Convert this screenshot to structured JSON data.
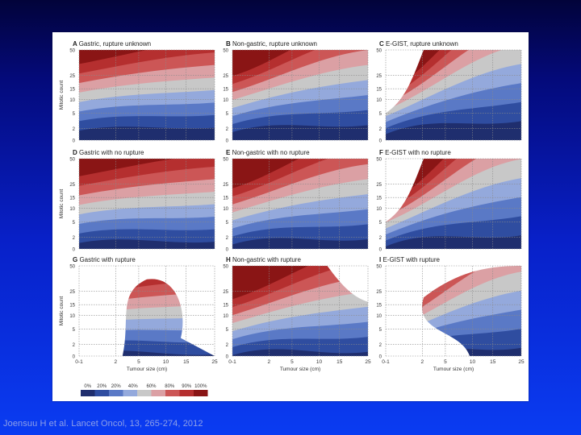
{
  "citation": "Joensuu H et al. Lancet Oncol, 13, 265-274, 2012",
  "chart_data": {
    "type": "heatmap",
    "x_ticks": [
      "0-1",
      "2",
      "5",
      "10",
      "15",
      "25"
    ],
    "y_ticks": [
      "0",
      "2",
      "5",
      "10",
      "15",
      "25",
      "50"
    ],
    "xlabel": "Tumour size (cm)",
    "ylabel": "Mitotic count",
    "legend_labels": [
      "0%",
      "20%",
      "20%",
      "40%",
      "60%",
      "80%",
      "90%",
      "100%"
    ],
    "colors": [
      "#1f2e6e",
      "#2f4da0",
      "#5a79c6",
      "#94a9dc",
      "#c8c8c8",
      "#dba0a4",
      "#cc5656",
      "#b52f2f",
      "#8a1515"
    ],
    "panels": [
      {
        "letter": "A",
        "title": "Gastric, rupture unknown"
      },
      {
        "letter": "B",
        "title": "Non-gastric, rupture unknown"
      },
      {
        "letter": "C",
        "title": "E-GIST, rupture unknown"
      },
      {
        "letter": "D",
        "title": "Gastric with no rupture"
      },
      {
        "letter": "E",
        "title": "Non-gastric with no rupture"
      },
      {
        "letter": "F",
        "title": "E-GIST with no rupture"
      },
      {
        "letter": "G",
        "title": "Gastric with rupture"
      },
      {
        "letter": "H",
        "title": "Non-gastric with rupture"
      },
      {
        "letter": "I",
        "title": "E-GIST with rupture"
      }
    ]
  }
}
